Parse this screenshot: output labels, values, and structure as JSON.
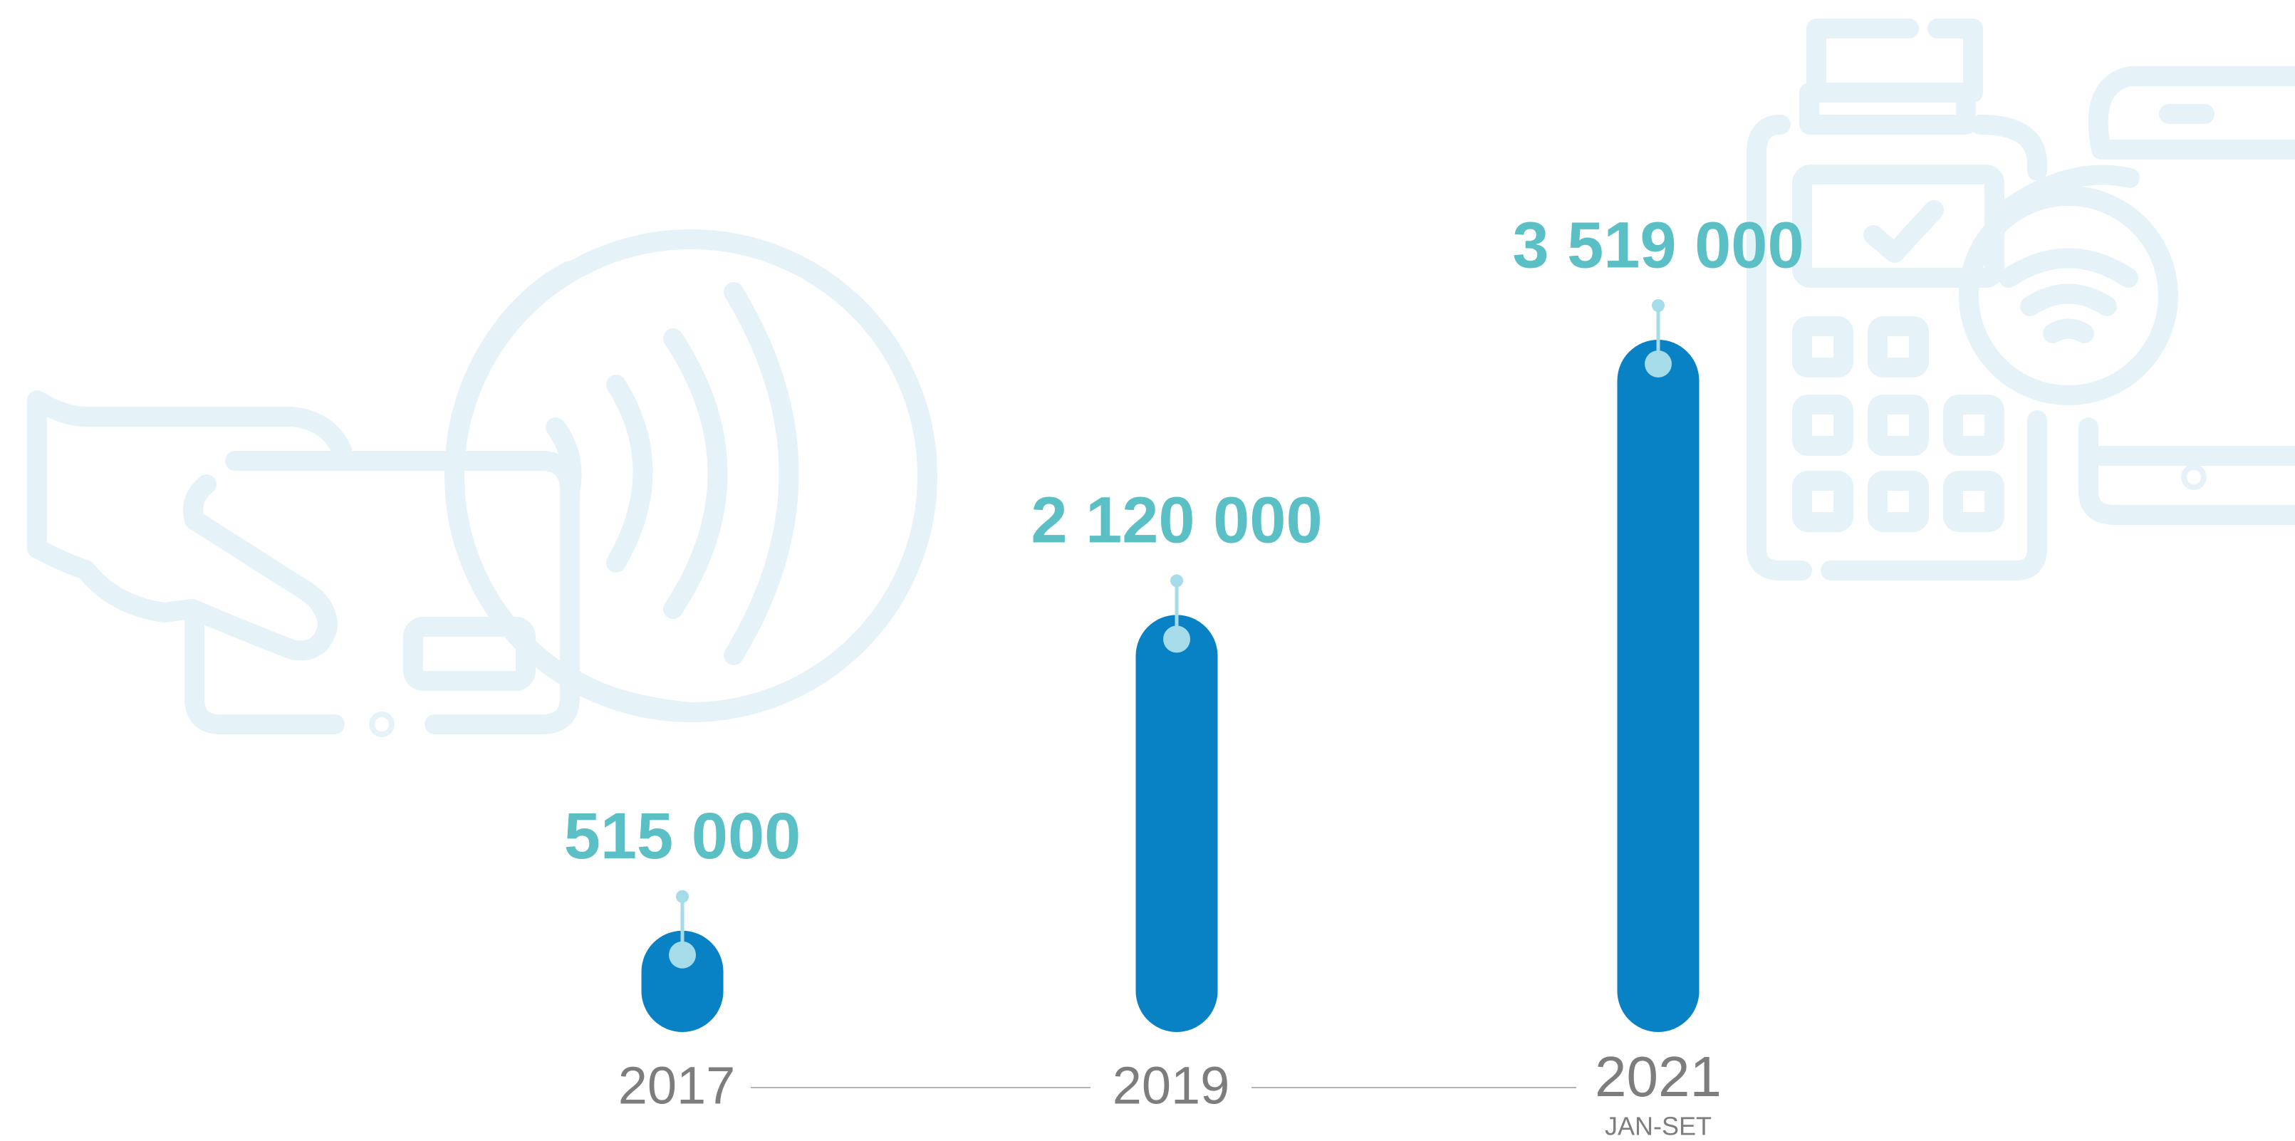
{
  "chart_data": {
    "type": "bar",
    "categories": [
      "2017",
      "2019",
      "2021"
    ],
    "category_sublabels": [
      null,
      null,
      "JAN-SET"
    ],
    "values": [
      515000,
      2120000,
      3519000
    ],
    "value_labels": [
      "515 000",
      "2 120 000",
      "3 519 000"
    ],
    "color": "#0882c4",
    "value_label_color": "#5bbfc6",
    "marker_color": "#a6dbea"
  }
}
